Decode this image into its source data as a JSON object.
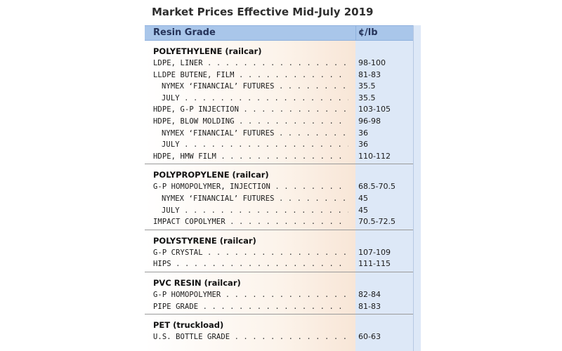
{
  "title": "Market Prices Effective Mid-July 2019",
  "header": {
    "grade_label": "Resin Grade",
    "price_label": "¢/lb"
  },
  "colors": {
    "header_bg": "#a9c6ea",
    "price_col_bg": "#dde8f7",
    "grade_col_bg": "#fcf3ea"
  },
  "sections": [
    {
      "heading": "POLYETHYLENE (railcar)",
      "rows": [
        {
          "label": "LDPE, LINER",
          "price": "98-100",
          "indent": false
        },
        {
          "label": "LLDPE BUTENE, FILM",
          "price": "81-83",
          "indent": false
        },
        {
          "label": "NYMEX ‘FINANCIAL’ FUTURES",
          "price": "35.5",
          "indent": true
        },
        {
          "label": "JULY",
          "price": "35.5",
          "indent": true
        },
        {
          "label": "HDPE, G-P INJECTION",
          "price": "103-105",
          "indent": false
        },
        {
          "label": "HDPE, BLOW MOLDING",
          "price": "96-98",
          "indent": false
        },
        {
          "label": "NYMEX ‘FINANCIAL’ FUTURES",
          "price": "36",
          "indent": true
        },
        {
          "label": "JULY",
          "price": "36",
          "indent": true
        },
        {
          "label": "HDPE, HMW FILM",
          "price": "110-112",
          "indent": false
        }
      ]
    },
    {
      "heading": "POLYPROPYLENE (railcar)",
      "rows": [
        {
          "label": "G-P HOMOPOLYMER, INJECTION",
          "price": "68.5-70.5",
          "indent": false
        },
        {
          "label": "NYMEX ‘FINANCIAL’ FUTURES",
          "price": "45",
          "indent": true
        },
        {
          "label": "JULY",
          "price": "45",
          "indent": true
        },
        {
          "label": "IMPACT COPOLYMER",
          "price": "70.5-72.5",
          "indent": false
        }
      ]
    },
    {
      "heading": "POLYSTYRENE (railcar)",
      "rows": [
        {
          "label": "G-P CRYSTAL",
          "price": "107-109",
          "indent": false
        },
        {
          "label": "HIPS",
          "price": "111-115",
          "indent": false
        }
      ]
    },
    {
      "heading": "PVC RESIN (railcar)",
      "rows": [
        {
          "label": "G-P HOMOPOLYMER",
          "price": "82-84",
          "indent": false
        },
        {
          "label": "PIPE GRADE",
          "price": "81-83",
          "indent": false
        }
      ]
    },
    {
      "heading": "PET (truckload)",
      "rows": [
        {
          "label": "U.S. BOTTLE GRADE",
          "price": "60-63",
          "indent": false
        }
      ]
    }
  ]
}
